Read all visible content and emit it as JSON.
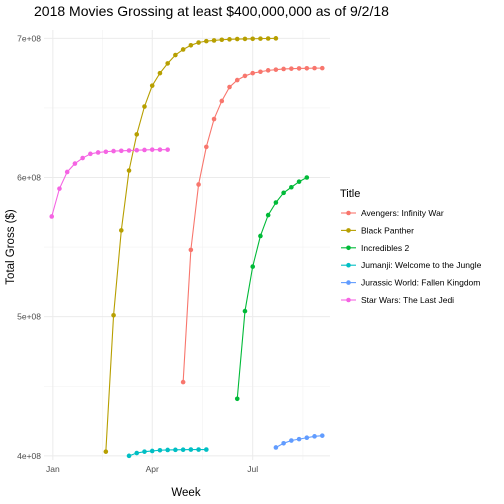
{
  "chart_data": {
    "type": "line",
    "title": "2018 Movies Grossing at least $400,000,000 as of 9/2/18",
    "xlabel": "Week",
    "ylabel": "Total Gross ($)",
    "x_ticks": [
      {
        "label": "Jan",
        "date": "2018-01-01"
      },
      {
        "label": "Apr",
        "date": "2018-04-01"
      },
      {
        "label": "Jul",
        "date": "2018-07-01"
      }
    ],
    "y_ticks": [
      {
        "label": "4e+08",
        "value": 400000000
      },
      {
        "label": "5e+08",
        "value": 500000000
      },
      {
        "label": "6e+08",
        "value": 600000000
      },
      {
        "label": "7e+08",
        "value": 700000000
      }
    ],
    "xlim": [
      "2017-12-24",
      "2018-09-09"
    ],
    "ylim": [
      397000000,
      706000000
    ],
    "grid": true,
    "legend": {
      "title": "Title",
      "position": "right"
    },
    "series": [
      {
        "name": "Avengers: Infinity War",
        "color": "#F8766D",
        "points": [
          [
            "2018-04-29",
            453000000
          ],
          [
            "2018-05-06",
            548000000
          ],
          [
            "2018-05-13",
            595000000
          ],
          [
            "2018-05-20",
            622000000
          ],
          [
            "2018-05-27",
            642000000
          ],
          [
            "2018-06-03",
            655000000
          ],
          [
            "2018-06-10",
            665000000
          ],
          [
            "2018-06-17",
            670000000
          ],
          [
            "2018-06-24",
            673000000
          ],
          [
            "2018-07-01",
            675000000
          ],
          [
            "2018-07-08",
            676000000
          ],
          [
            "2018-07-15",
            677000000
          ],
          [
            "2018-07-22",
            677500000
          ],
          [
            "2018-07-29",
            678000000
          ],
          [
            "2018-08-05",
            678200000
          ],
          [
            "2018-08-12",
            678400000
          ],
          [
            "2018-08-19",
            678500000
          ],
          [
            "2018-08-26",
            678600000
          ],
          [
            "2018-09-02",
            678600000
          ]
        ]
      },
      {
        "name": "Black Panther",
        "color": "#B79F00",
        "points": [
          [
            "2018-02-18",
            403000000
          ],
          [
            "2018-02-25",
            501000000
          ],
          [
            "2018-03-04",
            562000000
          ],
          [
            "2018-03-11",
            605000000
          ],
          [
            "2018-03-18",
            631000000
          ],
          [
            "2018-03-25",
            651000000
          ],
          [
            "2018-04-01",
            666000000
          ],
          [
            "2018-04-08",
            675000000
          ],
          [
            "2018-04-15",
            682000000
          ],
          [
            "2018-04-22",
            688000000
          ],
          [
            "2018-04-29",
            692000000
          ],
          [
            "2018-05-06",
            695000000
          ],
          [
            "2018-05-13",
            697000000
          ],
          [
            "2018-05-20",
            698000000
          ],
          [
            "2018-05-27",
            698500000
          ],
          [
            "2018-06-03",
            699000000
          ],
          [
            "2018-06-10",
            699300000
          ],
          [
            "2018-06-17",
            699500000
          ],
          [
            "2018-06-24",
            699600000
          ],
          [
            "2018-07-01",
            699700000
          ],
          [
            "2018-07-08",
            699800000
          ],
          [
            "2018-07-15",
            699900000
          ],
          [
            "2018-07-22",
            700000000
          ]
        ]
      },
      {
        "name": "Incredibles 2",
        "color": "#00BA38",
        "points": [
          [
            "2018-06-17",
            441000000
          ],
          [
            "2018-06-24",
            504000000
          ],
          [
            "2018-07-01",
            536000000
          ],
          [
            "2018-07-08",
            558000000
          ],
          [
            "2018-07-15",
            573000000
          ],
          [
            "2018-07-22",
            582000000
          ],
          [
            "2018-07-29",
            589000000
          ],
          [
            "2018-08-05",
            593000000
          ],
          [
            "2018-08-12",
            597000000
          ],
          [
            "2018-08-19",
            600000000
          ]
        ]
      },
      {
        "name": "Jumanji: Welcome to the Jungle",
        "color": "#00BFC4",
        "points": [
          [
            "2018-03-11",
            400000000
          ],
          [
            "2018-03-18",
            402000000
          ],
          [
            "2018-03-25",
            403000000
          ],
          [
            "2018-04-01",
            403500000
          ],
          [
            "2018-04-08",
            404000000
          ],
          [
            "2018-04-15",
            404200000
          ],
          [
            "2018-04-22",
            404300000
          ],
          [
            "2018-04-29",
            404400000
          ],
          [
            "2018-05-06",
            404500000
          ],
          [
            "2018-05-13",
            404500000
          ],
          [
            "2018-05-20",
            404500000
          ]
        ]
      },
      {
        "name": "Jurassic World: Fallen Kingdom",
        "color": "#619CFF",
        "points": [
          [
            "2018-07-22",
            406000000
          ],
          [
            "2018-07-29",
            409000000
          ],
          [
            "2018-08-05",
            411000000
          ],
          [
            "2018-08-12",
            412000000
          ],
          [
            "2018-08-19",
            413000000
          ],
          [
            "2018-08-26",
            414000000
          ],
          [
            "2018-09-02",
            414500000
          ]
        ]
      },
      {
        "name": "Star Wars: The Last Jedi",
        "color": "#F564E3",
        "points": [
          [
            "2017-12-31",
            572000000
          ],
          [
            "2018-01-07",
            592000000
          ],
          [
            "2018-01-14",
            604000000
          ],
          [
            "2018-01-21",
            610000000
          ],
          [
            "2018-01-28",
            614000000
          ],
          [
            "2018-02-04",
            617000000
          ],
          [
            "2018-02-11",
            618000000
          ],
          [
            "2018-02-18",
            618500000
          ],
          [
            "2018-02-25",
            619000000
          ],
          [
            "2018-03-04",
            619200000
          ],
          [
            "2018-03-11",
            619400000
          ],
          [
            "2018-03-18",
            619600000
          ],
          [
            "2018-03-25",
            619800000
          ],
          [
            "2018-04-01",
            620000000
          ],
          [
            "2018-04-08",
            620000000
          ],
          [
            "2018-04-15",
            620000000
          ]
        ]
      }
    ]
  }
}
